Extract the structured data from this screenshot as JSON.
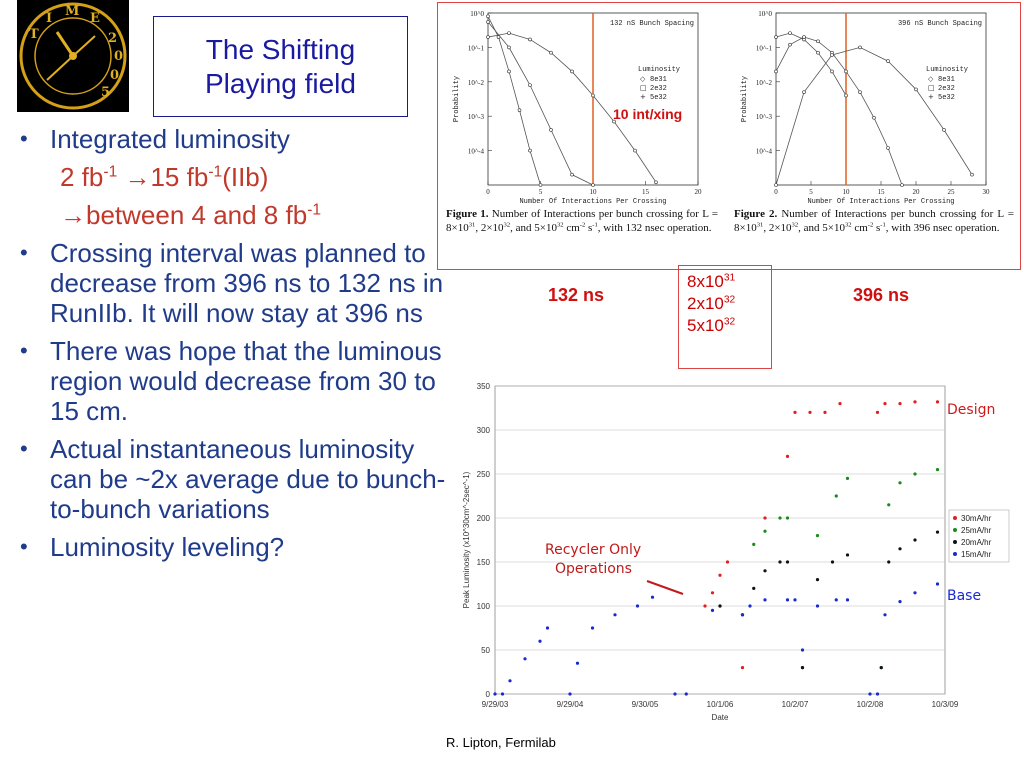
{
  "title": {
    "line1": "The Shifting",
    "line2": "Playing field"
  },
  "logo": {
    "icon": "clock-logo",
    "text": "TIME 2005"
  },
  "bullets": [
    {
      "text": "Integrated luminosity"
    },
    {
      "text": "Crossing interval was planned to decrease from 396 ns to 132 ns in RunIIb. It will now stay at 396 ns"
    },
    {
      "text": "There was hope that the luminous region would decrease from 30 to 15 cm."
    },
    {
      "text": "Actual instantaneous luminosity can be ~2x average due to bunch-to-bunch variations"
    },
    {
      "text": "Luminosity leveling?"
    }
  ],
  "sub": {
    "line1_a": "2 fb",
    "line1_sup1": "-1",
    "line1_b": " →15 fb",
    "line1_sup2": "-1",
    "line1_c": "(IIb)",
    "line2_a": "→between 4 and 8 fb",
    "line2_sup": "-1"
  },
  "annot": {
    "int_per_xing": "10 int/xing",
    "ns132": "132 ns",
    "ns396": "396 ns",
    "lumi_base": "8x10",
    "lumi_exp1": "31",
    "lumi_mid": "2x10",
    "lumi_exp2": "32",
    "lumi_end": "5x10",
    "lumi_exp3": "32"
  },
  "fig1": {
    "caption_bold": "Figure 1.",
    "caption": "Number of Interactions per bunch crossing for L = 8×10^31, 2×10^32, and 5×10^32 cm^-2 s^-1, with 132 nsec operation."
  },
  "fig2": {
    "caption_bold": "Figure 2.",
    "caption": "Number of Interactions per bunch crossing for L = 8×10^31, 2×10^32, and 5×10^32 cm^-2 s^-1, with 396 nsec operation."
  },
  "chart_data": [
    {
      "type": "line",
      "title": "132 nS Bunch Spacing",
      "xlabel": "Number Of Interactions Per Crossing",
      "ylabel": "Probability",
      "x_ticks": [
        "0",
        "5",
        "10",
        "15",
        "20"
      ],
      "y_ticks": [
        "10^0",
        "10^-1",
        "10^-2",
        "10^-3",
        "10^-4"
      ],
      "yscale": "log",
      "ylim": [
        1e-05,
        1
      ],
      "xlim": [
        0,
        20
      ],
      "vline_x": 10,
      "legend_title": "Luminosity",
      "series": [
        {
          "name": "8e31",
          "x": [
            0,
            1,
            2,
            3,
            4,
            5
          ],
          "y": [
            0.8,
            0.2,
            0.02,
            0.0015,
            0.0001,
            1e-05
          ]
        },
        {
          "name": "2e32",
          "x": [
            0,
            2,
            4,
            6,
            8,
            10
          ],
          "y": [
            0.55,
            0.1,
            0.008,
            0.0004,
            2e-05,
            1e-06
          ]
        },
        {
          "name": "5e32",
          "x": [
            0,
            2,
            4,
            6,
            8,
            10,
            12,
            14,
            16
          ],
          "y": [
            0.2,
            0.26,
            0.17,
            0.07,
            0.02,
            0.004,
            0.0007,
            0.0001,
            1.2e-05
          ]
        }
      ]
    },
    {
      "type": "line",
      "title": "396 nS Bunch Spacing",
      "xlabel": "Number Of Interactions Per Crossing",
      "ylabel": "Probability",
      "x_ticks": [
        "0",
        "5",
        "10",
        "15",
        "20",
        "25",
        "30"
      ],
      "y_ticks": [
        "10^0",
        "10^-1",
        "10^-2",
        "10^-3",
        "10^-4"
      ],
      "yscale": "log",
      "ylim": [
        1e-05,
        1
      ],
      "xlim": [
        0,
        30
      ],
      "vline_x": 10,
      "legend_title": "Luminosity",
      "series": [
        {
          "name": "8e31",
          "x": [
            0,
            2,
            4,
            6,
            8,
            10
          ],
          "y": [
            0.2,
            0.26,
            0.17,
            0.07,
            0.02,
            0.004
          ]
        },
        {
          "name": "2e32",
          "x": [
            0,
            2,
            4,
            6,
            8,
            10,
            12,
            14,
            16,
            18
          ],
          "y": [
            0.02,
            0.12,
            0.2,
            0.15,
            0.07,
            0.02,
            0.005,
            0.0009,
            0.00012,
            1e-05
          ]
        },
        {
          "name": "5e32",
          "x": [
            0,
            4,
            8,
            12,
            16,
            20,
            24,
            28
          ],
          "y": [
            1e-05,
            0.005,
            0.06,
            0.1,
            0.04,
            0.006,
            0.0004,
            2e-05
          ]
        }
      ]
    },
    {
      "type": "scatter",
      "xlabel": "Date",
      "ylabel": "Peak Luminosity (x10^30cm^-2sec^-1)",
      "x_ticks": [
        "9/29/03",
        "9/29/04",
        "9/30/05",
        "10/1/06",
        "10/2/07",
        "10/2/08",
        "10/3/09"
      ],
      "y_ticks": [
        0,
        50,
        100,
        150,
        200,
        250,
        300,
        350
      ],
      "ylim": [
        0,
        350
      ],
      "xlim": [
        0,
        6
      ],
      "annotations": [
        "Recycler Only Operations",
        "Design",
        "Base"
      ],
      "series": [
        {
          "name": "30mA/hr",
          "color": "#e02020",
          "x": [
            2.8,
            2.9,
            3.0,
            3.1,
            3.3,
            3.6,
            3.9,
            4.0,
            4.2,
            4.4,
            4.6,
            5.1,
            5.2,
            5.4,
            5.6,
            5.9
          ],
          "y": [
            100,
            115,
            135,
            150,
            30,
            200,
            270,
            320,
            320,
            320,
            330,
            320,
            330,
            330,
            332,
            332
          ]
        },
        {
          "name": "25mA/hr",
          "color": "#1a8a1a",
          "x": [
            3.0,
            3.3,
            3.45,
            3.6,
            3.8,
            3.9,
            4.1,
            4.3,
            4.55,
            4.7,
            5.15,
            5.25,
            5.4,
            5.6,
            5.9
          ],
          "y": [
            100,
            90,
            170,
            185,
            200,
            200,
            30,
            180,
            225,
            245,
            30,
            215,
            240,
            250,
            255
          ]
        },
        {
          "name": "20mA/hr",
          "color": "#111111",
          "x": [
            3.0,
            3.3,
            3.45,
            3.6,
            3.8,
            3.9,
            4.1,
            4.3,
            4.5,
            4.7,
            5.15,
            5.25,
            5.4,
            5.6,
            5.9
          ],
          "y": [
            100,
            90,
            120,
            140,
            150,
            150,
            30,
            130,
            150,
            158,
            30,
            150,
            165,
            175,
            184
          ]
        },
        {
          "name": "15mA/hr",
          "color": "#1a2ad0",
          "x": [
            0,
            0.1,
            0.2,
            0.4,
            0.6,
            0.7,
            1.0,
            1.1,
            1.3,
            1.6,
            1.9,
            2.1,
            2.4,
            2.55,
            2.9,
            3.3,
            3.4,
            3.6,
            3.9,
            4.0,
            4.1,
            4.3,
            4.55,
            4.7,
            5.0,
            5.1,
            5.2,
            5.4,
            5.6,
            5.9
          ],
          "y": [
            0,
            0,
            15,
            40,
            60,
            75,
            0,
            35,
            75,
            90,
            100,
            110,
            0,
            0,
            95,
            90,
            100,
            107,
            107,
            107,
            50,
            100,
            107,
            107,
            0,
            0,
            90,
            105,
            115,
            125
          ]
        }
      ]
    }
  ],
  "credit": "R. Lipton, Fermilab"
}
